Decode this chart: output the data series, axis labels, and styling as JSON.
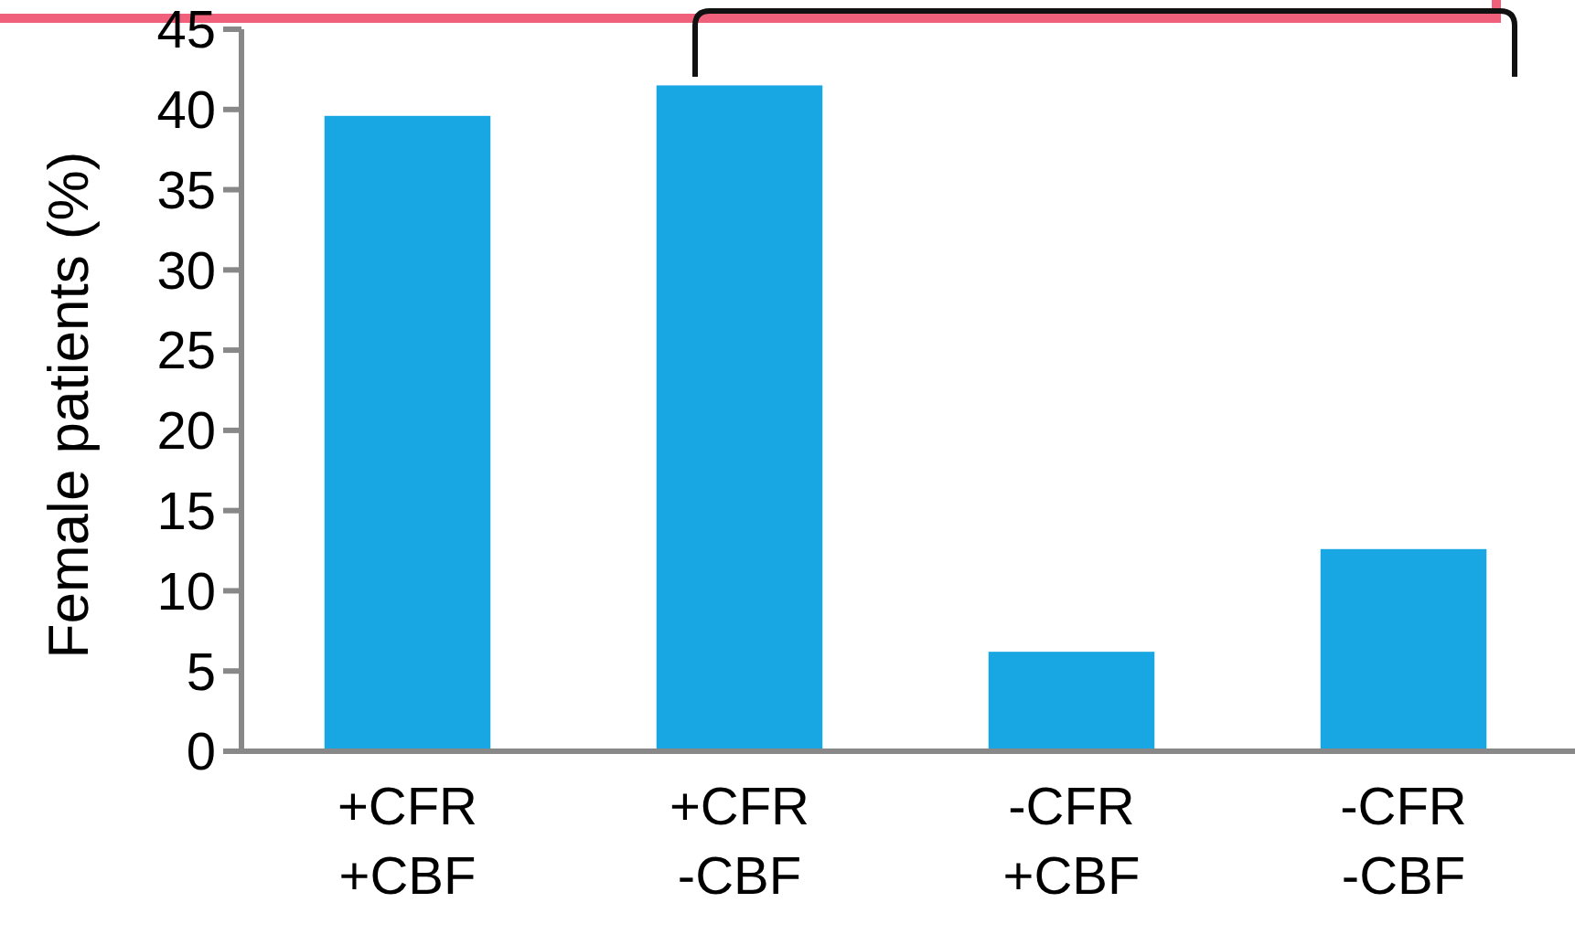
{
  "chart_data": {
    "type": "bar",
    "ylabel": "Female patients (%)",
    "categories": [
      "+CFR\n+CBF",
      "+CFR\n-CBF",
      "-CFR\n+CBF",
      "-CFR\n-CBF"
    ],
    "values": [
      39.6,
      41.5,
      6.2,
      12.6
    ],
    "color": "#18a7e2",
    "ylim": [
      0,
      45
    ],
    "yticks": [
      0,
      5,
      10,
      15,
      20,
      25,
      30,
      35,
      40,
      45
    ],
    "grid": false
  }
}
